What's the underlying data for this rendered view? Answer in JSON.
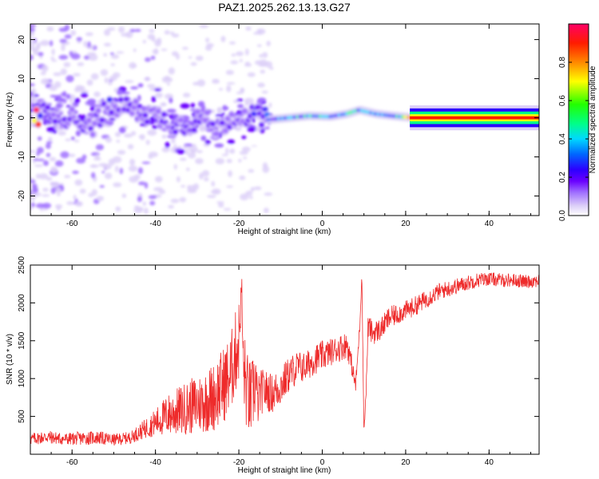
{
  "title": "PAZ1.2025.262.13.13.G27",
  "colors": {
    "snr_line": "#ee2b2b",
    "spectrogram_scale": [
      "#ffffff",
      "#ddd0f8",
      "#a070ff",
      "#6a00ff",
      "#2c00ff",
      "#0066ff",
      "#00d8ff",
      "#00ff88",
      "#22ff00",
      "#ffff00",
      "#ff8800",
      "#ff1c00",
      "#ff0066"
    ]
  },
  "chart_data": [
    {
      "type": "heatmap",
      "xlabel": "Height of straight line (km)",
      "ylabel": "Frequency (Hz)",
      "xlim": [
        -70,
        52
      ],
      "ylim": [
        -25,
        24
      ],
      "xticks": [
        -60,
        -40,
        -20,
        0,
        20,
        40
      ],
      "xtick_labels": [
        "-60",
        "-40",
        "-20",
        "0",
        "20",
        "40"
      ],
      "yticks": [
        -20,
        -10,
        0,
        10,
        20
      ],
      "ytick_labels": [
        "-20",
        "-10",
        "0",
        "10",
        "20"
      ],
      "colorbar": {
        "label": "Normalized spectral amplitude",
        "range": [
          0,
          1
        ],
        "ticks": [
          0.0,
          0.2,
          0.4,
          0.6,
          0.8
        ],
        "tick_labels": [
          "0.0",
          "0.2",
          "0.4",
          "0.6",
          "0.8"
        ]
      },
      "ridge": [
        {
          "x": -68,
          "f": 2,
          "amp": 0.3
        },
        {
          "x": -64,
          "f": 1,
          "amp": 0.2
        },
        {
          "x": -60,
          "f": 0,
          "amp": 0.25
        },
        {
          "x": -55,
          "f": -2,
          "amp": 0.2
        },
        {
          "x": -52,
          "f": 2,
          "amp": 0.25
        },
        {
          "x": -48,
          "f": 3,
          "amp": 0.25
        },
        {
          "x": -45,
          "f": 2,
          "amp": 0.22
        },
        {
          "x": -41,
          "f": 1,
          "amp": 0.2
        },
        {
          "x": -37,
          "f": -1,
          "amp": 0.22
        },
        {
          "x": -33,
          "f": -2,
          "amp": 0.25
        },
        {
          "x": -29,
          "f": 0,
          "amp": 0.28
        },
        {
          "x": -25,
          "f": -3,
          "amp": 0.2
        },
        {
          "x": -22,
          "f": 0,
          "amp": 0.25
        },
        {
          "x": -18,
          "f": 1,
          "amp": 0.22
        },
        {
          "x": -13,
          "f": -0.5,
          "amp": 0.35
        },
        {
          "x": -8,
          "f": 0,
          "amp": 0.45
        },
        {
          "x": -3,
          "f": 0.5,
          "amp": 0.5
        },
        {
          "x": 2,
          "f": 0.3,
          "amp": 0.45
        },
        {
          "x": 6,
          "f": 1,
          "amp": 0.5
        },
        {
          "x": 9,
          "f": 2,
          "amp": 0.5
        },
        {
          "x": 13,
          "f": 1,
          "amp": 0.45
        },
        {
          "x": 17,
          "f": 0.5,
          "amp": 0.4
        },
        {
          "x": 22,
          "f": 0,
          "amp": 0.9
        },
        {
          "x": 30,
          "f": 0,
          "amp": 0.95
        },
        {
          "x": 40,
          "f": 0,
          "amp": 0.95
        },
        {
          "x": 52,
          "f": 0,
          "amp": 0.95
        }
      ]
    },
    {
      "type": "line",
      "xlabel": "Height of straight line (km)",
      "ylabel": "SNR (10 * v/v)",
      "xlim": [
        -70,
        52
      ],
      "ylim": [
        0,
        2500
      ],
      "xticks": [
        -60,
        -40,
        -20,
        0,
        20,
        40
      ],
      "xtick_labels": [
        "-60",
        "-40",
        "-20",
        "0",
        "20",
        "40"
      ],
      "yticks": [
        500,
        1000,
        1500,
        2000,
        2500
      ],
      "ytick_labels": [
        "500",
        "1000",
        "1500",
        "2000",
        "2500"
      ],
      "series": [
        {
          "x": [
            -70,
            -66,
            -62,
            -58,
            -54,
            -50,
            -46,
            -43,
            -40,
            -37,
            -34,
            -31,
            -28,
            -26,
            -24,
            -22,
            -21,
            -20,
            -19.3,
            -19,
            -18,
            -17,
            -16,
            -15.5,
            -15,
            -14,
            -12,
            -10,
            -8,
            -6,
            -4,
            -2,
            0,
            2,
            4,
            6,
            7,
            8,
            9,
            9.5,
            10,
            10.5,
            11,
            12,
            14,
            16,
            18,
            20,
            22,
            25,
            28,
            31,
            34,
            37,
            40,
            43,
            46,
            49,
            52
          ],
          "y": [
            200,
            230,
            200,
            210,
            220,
            190,
            220,
            320,
            420,
            520,
            580,
            640,
            700,
            760,
            900,
            1050,
            1300,
            1500,
            2250,
            1200,
            800,
            700,
            1000,
            650,
            800,
            850,
            800,
            900,
            1050,
            1150,
            1150,
            1250,
            1300,
            1350,
            1400,
            1450,
            1200,
            900,
            1700,
            2400,
            300,
            800,
            1700,
            1600,
            1650,
            1800,
            1850,
            1900,
            1950,
            2050,
            2150,
            2200,
            2250,
            2300,
            2320,
            2300,
            2300,
            2280,
            2300
          ],
          "noise": [
            80,
            90,
            80,
            90,
            90,
            80,
            80,
            120,
            180,
            280,
            330,
            380,
            420,
            460,
            500,
            540,
            560,
            560,
            100,
            560,
            560,
            500,
            520,
            280,
            320,
            280,
            260,
            260,
            240,
            220,
            200,
            200,
            200,
            180,
            180,
            180,
            140,
            100,
            80,
            50,
            40,
            80,
            160,
            160,
            150,
            150,
            140,
            130,
            130,
            120,
            110,
            110,
            100,
            100,
            90,
            90,
            90,
            90,
            90
          ]
        }
      ]
    }
  ]
}
